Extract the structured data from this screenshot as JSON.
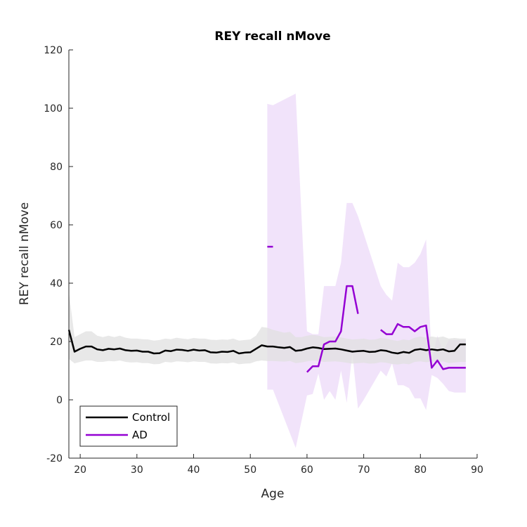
{
  "chart_data": {
    "type": "line",
    "title": "REY recall nMove",
    "xlabel": "Age",
    "ylabel": "REY recall nMove",
    "xlim": [
      18,
      90
    ],
    "ylim": [
      -20,
      120
    ],
    "xticks": [
      20,
      30,
      40,
      50,
      60,
      70,
      80,
      90
    ],
    "yticks": [
      -20,
      0,
      20,
      40,
      60,
      80,
      100,
      120
    ],
    "grid": false,
    "legend_position": "bottom-left",
    "series": [
      {
        "name": "Control",
        "color": "#000000",
        "band_color": "#e0e0e0",
        "x": [
          18,
          19,
          20,
          21,
          22,
          23,
          24,
          25,
          26,
          27,
          28,
          29,
          30,
          31,
          32,
          33,
          34,
          35,
          36,
          37,
          38,
          39,
          40,
          41,
          42,
          43,
          44,
          45,
          46,
          47,
          48,
          49,
          50,
          51,
          52,
          53,
          54,
          55,
          56,
          57,
          58,
          59,
          60,
          61,
          62,
          63,
          64,
          65,
          66,
          67,
          68,
          69,
          70,
          71,
          72,
          73,
          74,
          75,
          76,
          77,
          78,
          79,
          80,
          81,
          82,
          83,
          84,
          85,
          86,
          87,
          88
        ],
        "y": [
          24,
          16.5,
          17.5,
          18.3,
          18.3,
          17.3,
          17,
          17.5,
          17.3,
          17.6,
          17,
          16.8,
          16.9,
          16.5,
          16.5,
          15.9,
          16,
          16.9,
          16.7,
          17.2,
          17.1,
          16.8,
          17.2,
          16.9,
          17,
          16.3,
          16.2,
          16.5,
          16.4,
          16.8,
          15.9,
          16.2,
          16.3,
          17.5,
          18.7,
          18.3,
          18.3,
          18,
          17.8,
          18.1,
          16.8,
          17,
          17.6,
          18,
          17.8,
          17.4,
          17.5,
          17.6,
          17.3,
          16.9,
          16.5,
          16.7,
          16.8,
          16.4,
          16.5,
          17,
          16.8,
          16.2,
          15.9,
          16.4,
          16.1,
          17.1,
          17.4,
          17,
          17.3,
          17,
          17.3,
          16.6,
          16.8,
          19,
          19
        ],
        "upper": [
          37,
          21.5,
          22.5,
          23.5,
          23.5,
          22,
          21.5,
          22,
          21.5,
          22,
          21.3,
          21,
          21,
          20.8,
          20.7,
          20.3,
          20.5,
          21,
          20.8,
          21.3,
          21,
          20.8,
          21.2,
          21,
          21,
          20.6,
          20.5,
          20.7,
          20.6,
          21,
          20.3,
          20.5,
          20.7,
          22,
          25,
          24.7,
          24,
          23.5,
          23,
          23.3,
          21.5,
          21.5,
          22,
          22.3,
          22,
          21.5,
          21.6,
          21.7,
          21.4,
          21,
          20.7,
          20.8,
          21,
          20.6,
          20.7,
          21.2,
          21,
          20.5,
          20.2,
          20.7,
          20.4,
          21.3,
          21.7,
          21.3,
          21.7,
          21.4,
          21.7,
          21,
          21.2,
          21,
          21
        ],
        "lower": [
          14,
          12.5,
          13,
          13.5,
          13.5,
          13,
          13,
          13.3,
          13.2,
          13.5,
          13,
          12.8,
          12.9,
          12.6,
          12.6,
          12.2,
          12.3,
          13,
          12.8,
          13.2,
          13.1,
          12.9,
          13.2,
          13,
          13,
          12.5,
          12.4,
          12.6,
          12.5,
          12.8,
          12.2,
          12.4,
          12.5,
          13.2,
          13.5,
          13.3,
          13.3,
          13.2,
          13.1,
          13.3,
          12.6,
          12.8,
          13.2,
          13.5,
          13.3,
          13,
          13.1,
          13.2,
          13,
          12.7,
          12.4,
          12.6,
          12.7,
          12.4,
          12.5,
          12.9,
          12.7,
          12.3,
          12.1,
          12.4,
          12.2,
          13,
          13.2,
          12.9,
          13.2,
          12.9,
          13.2,
          12.6,
          12.8,
          13,
          13
        ]
      },
      {
        "name": "AD",
        "color": "#9400d3",
        "band_color": "#f0e0fa",
        "segments": [
          {
            "x": [
              53,
              54
            ],
            "y": [
              52.5,
              52.5
            ]
          },
          {
            "x": [
              60,
              61,
              62,
              63,
              64,
              65,
              66,
              67,
              68,
              69
            ],
            "y": [
              9.5,
              11.5,
              11.5,
              19,
              20,
              20,
              23.5,
              39,
              39,
              29.5
            ]
          },
          {
            "x": [
              73,
              74,
              75,
              76,
              77,
              78,
              79,
              80,
              81,
              82,
              83,
              84,
              85,
              86,
              87,
              88
            ],
            "y": [
              24,
              22.5,
              22.5,
              26,
              25,
              25,
              23.5,
              25,
              25.5,
              11,
              13.5,
              10.5,
              11,
              11,
              11,
              11
            ]
          }
        ],
        "band": {
          "x": [
            53,
            54,
            58,
            60,
            61,
            62,
            63,
            64,
            65,
            66,
            67,
            68,
            69,
            70,
            73,
            74,
            75,
            76,
            77,
            78,
            79,
            80,
            81,
            82,
            83,
            84,
            85,
            86,
            87,
            88
          ],
          "upper": [
            101.5,
            101,
            105,
            23.5,
            22.5,
            22.5,
            39,
            39,
            39,
            47,
            67.5,
            67.5,
            63,
            57,
            39,
            36,
            34,
            47,
            45.5,
            45.5,
            47,
            50,
            55,
            13.5,
            22,
            16.5,
            20.5,
            20.5,
            20.5,
            20.5
          ],
          "lower": [
            3.5,
            3.5,
            -16.5,
            1.5,
            2,
            9,
            0,
            3,
            0,
            10,
            -1,
            16,
            -3,
            0,
            10,
            8,
            12.5,
            5,
            5,
            4,
            0.5,
            0.5,
            -3.5,
            8.5,
            7.5,
            5.5,
            3,
            2.5,
            2.5,
            2.5
          ]
        }
      }
    ]
  }
}
